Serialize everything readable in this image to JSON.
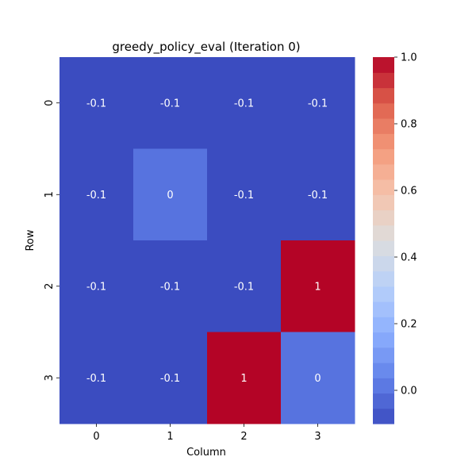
{
  "chart_data": {
    "type": "heatmap",
    "title": "greedy_policy_eval (Iteration 0)",
    "xlabel": "Column",
    "ylabel": "Row",
    "x_categories": [
      "0",
      "1",
      "2",
      "3"
    ],
    "y_categories": [
      "0",
      "1",
      "2",
      "3"
    ],
    "values": [
      [
        -0.1,
        -0.1,
        -0.1,
        -0.1
      ],
      [
        -0.1,
        0,
        -0.1,
        -0.1
      ],
      [
        -0.1,
        -0.1,
        -0.1,
        1
      ],
      [
        -0.1,
        -0.1,
        1,
        0
      ]
    ],
    "cell_labels": [
      [
        "-0.1",
        "-0.1",
        "-0.1",
        "-0.1"
      ],
      [
        "-0.1",
        "0",
        "-0.1",
        "-0.1"
      ],
      [
        "-0.1",
        "-0.1",
        "-0.1",
        "1"
      ],
      [
        "-0.1",
        "-0.1",
        "1",
        "0"
      ]
    ],
    "colormap": "coolwarm",
    "vmin": -0.1,
    "vmax": 1.0,
    "colorbar_ticks": [
      "0.0",
      "0.2",
      "0.4",
      "0.6",
      "0.8",
      "1.0"
    ],
    "legend_position": "right",
    "grid": false
  }
}
